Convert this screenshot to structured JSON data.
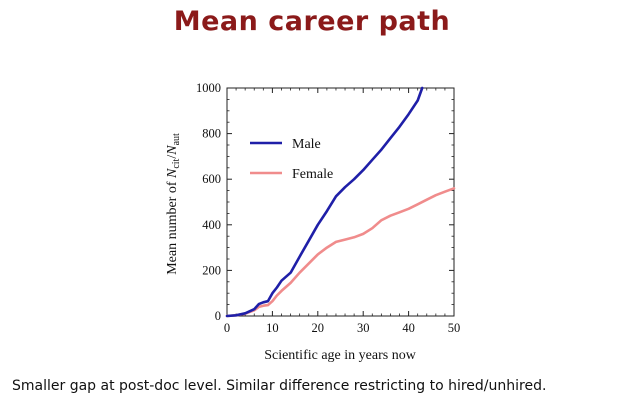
{
  "title": "Mean career path",
  "caption": "Smaller gap at post-doc level. Similar difference restricting to hired/unhired.",
  "chart_data": {
    "type": "line",
    "title": "",
    "xlabel": "Scientific age in years now",
    "ylabel_parts": {
      "prefix": "Mean number of ",
      "n1": "N",
      "sub1": "cit",
      "slash": "/",
      "n2": "N",
      "sub2": "aut"
    },
    "xlim": [
      0,
      50
    ],
    "ylim": [
      0,
      1000
    ],
    "xticks": [
      0,
      10,
      20,
      30,
      40,
      50
    ],
    "yticks": [
      0,
      200,
      400,
      600,
      800,
      1000
    ],
    "grid": false,
    "legend_position": "top-left",
    "series": [
      {
        "name": "Male",
        "color": "#1f1fa8",
        "x": [
          0,
          2,
          4,
          6,
          7,
          8,
          9,
          10,
          11,
          12,
          14,
          16,
          18,
          20,
          22,
          24,
          26,
          28,
          30,
          32,
          34,
          36,
          38,
          40,
          42,
          43
        ],
        "y": [
          0,
          3,
          12,
          30,
          52,
          60,
          65,
          100,
          125,
          155,
          190,
          260,
          330,
          400,
          460,
          525,
          565,
          600,
          640,
          685,
          730,
          780,
          830,
          885,
          945,
          1000
        ]
      },
      {
        "name": "Female",
        "color": "#f08c8c",
        "x": [
          0,
          2,
          4,
          6,
          7,
          8,
          9,
          10,
          11,
          12,
          14,
          16,
          18,
          20,
          22,
          24,
          26,
          28,
          30,
          32,
          34,
          36,
          38,
          40,
          42,
          44,
          46,
          48,
          50
        ],
        "y": [
          0,
          3,
          10,
          25,
          40,
          45,
          48,
          65,
          90,
          110,
          145,
          190,
          230,
          270,
          300,
          325,
          335,
          345,
          360,
          385,
          420,
          440,
          455,
          470,
          490,
          510,
          530,
          545,
          560
        ]
      }
    ]
  }
}
